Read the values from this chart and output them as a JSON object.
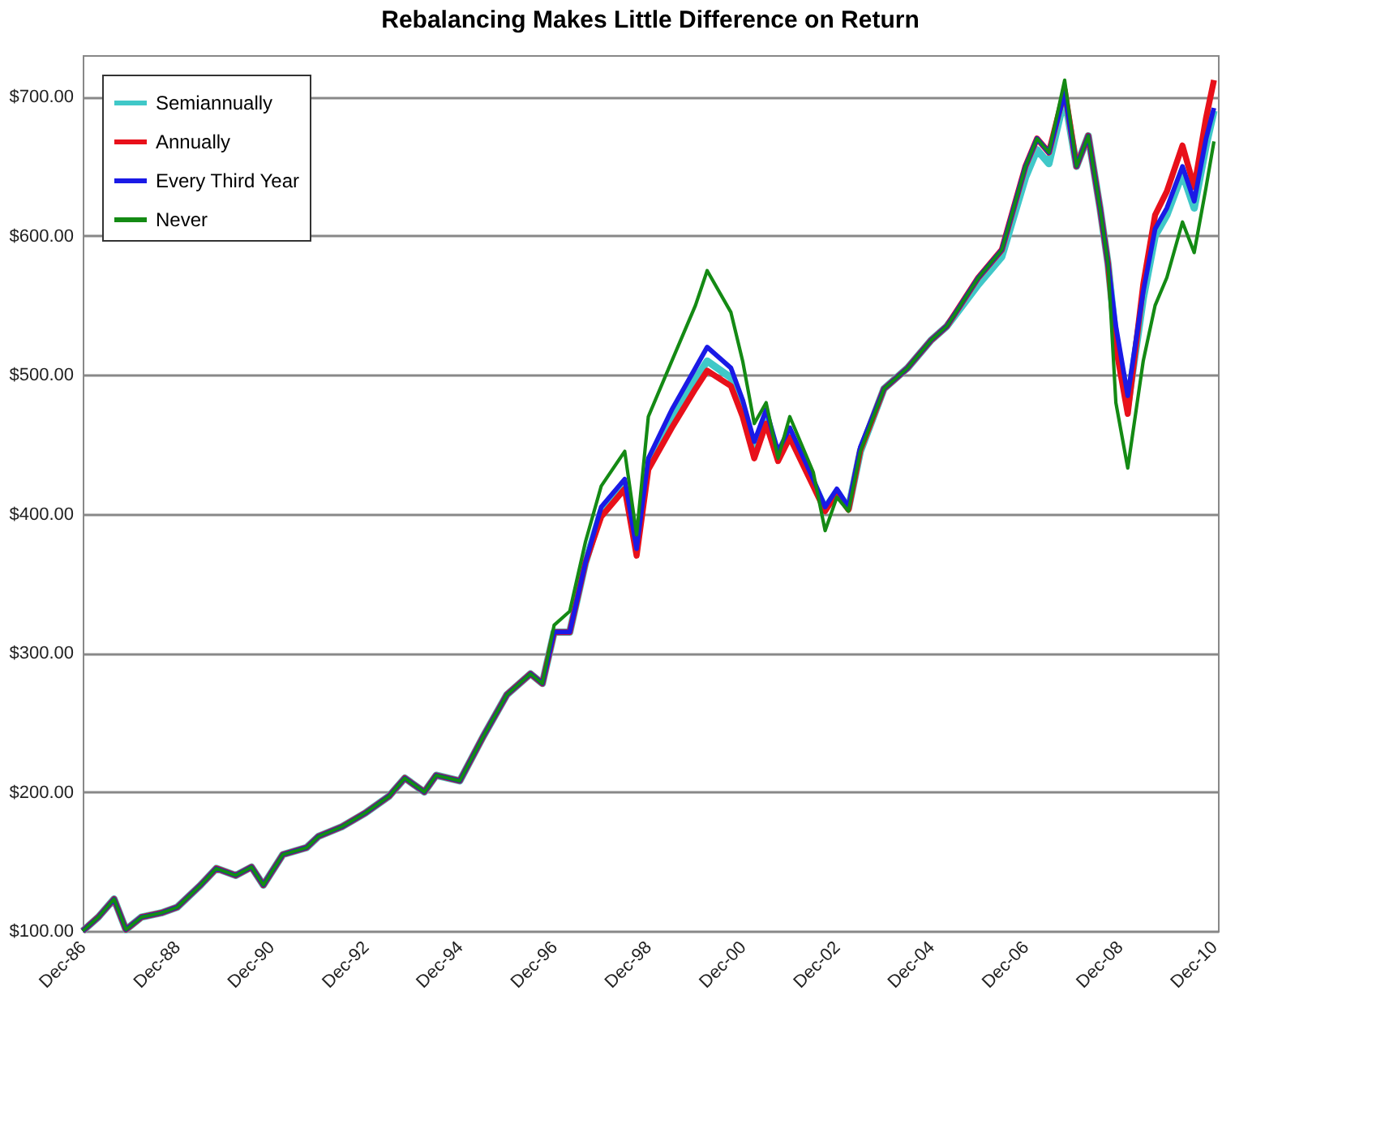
{
  "chart_data": {
    "type": "line",
    "title": "Rebalancing Makes Little Difference on Return",
    "x": [
      "1986-12",
      "1987-04",
      "1987-08",
      "1987-11",
      "1988-03",
      "1988-08",
      "1988-12",
      "1989-06",
      "1989-10",
      "1990-03",
      "1990-07",
      "1990-10",
      "1991-03",
      "1991-09",
      "1991-12",
      "1992-06",
      "1992-12",
      "1993-06",
      "1993-10",
      "1994-03",
      "1994-06",
      "1994-12",
      "1995-06",
      "1995-12",
      "1996-06",
      "1996-09",
      "1996-12",
      "1997-04",
      "1997-08",
      "1997-12",
      "1998-06",
      "1998-09",
      "1998-12",
      "1999-06",
      "1999-12",
      "2000-03",
      "2000-09",
      "2000-12",
      "2001-03",
      "2001-06",
      "2001-09",
      "2001-12",
      "2002-06",
      "2002-09",
      "2002-12",
      "2003-03",
      "2003-06",
      "2003-12",
      "2004-06",
      "2004-12",
      "2005-04",
      "2005-12",
      "2006-06",
      "2006-12",
      "2007-03",
      "2007-06",
      "2007-10",
      "2008-01",
      "2008-04",
      "2008-07",
      "2008-09",
      "2008-11",
      "2009-02",
      "2009-06",
      "2009-09",
      "2009-12",
      "2010-04",
      "2010-07",
      "2010-10",
      "2010-12"
    ],
    "series": [
      {
        "name": "Semiannually",
        "color": "#40c8c8",
        "values": [
          100,
          110,
          123,
          101,
          110,
          113,
          117,
          133,
          145,
          140,
          146,
          133,
          155,
          160,
          168,
          175,
          185,
          197,
          210,
          200,
          212,
          208,
          240,
          270,
          285,
          278,
          315,
          315,
          365,
          402,
          422,
          null,
          437,
          468,
          497,
          510,
          498,
          476,
          446,
          470,
          null,
          458,
          422,
          404,
          416,
          404,
          445,
          490,
          505,
          525,
          535,
          565,
          585,
          642,
          662,
          652,
          700,
          650,
          672,
          620,
          580,
          525,
          478,
          555,
          600,
          615,
          645,
          620,
          665,
          690
        ]
      },
      {
        "name": "Annually",
        "color": "#e8101a",
        "values": [
          100,
          110,
          123,
          101,
          110,
          113,
          117,
          133,
          145,
          140,
          146,
          133,
          155,
          160,
          168,
          175,
          185,
          197,
          210,
          200,
          212,
          208,
          240,
          270,
          285,
          278,
          315,
          315,
          365,
          398,
          418,
          370,
          432,
          462,
          490,
          503,
          492,
          470,
          440,
          465,
          438,
          455,
          420,
          402,
          415,
          403,
          446,
          490,
          505,
          525,
          535,
          570,
          590,
          650,
          670,
          660,
          705,
          650,
          672,
          620,
          580,
          520,
          472,
          565,
          615,
          632,
          665,
          635,
          685,
          712
        ]
      },
      {
        "name": "Every Third Year",
        "color": "#1a1ae6",
        "values": [
          100,
          110,
          123,
          101,
          110,
          113,
          117,
          133,
          145,
          140,
          146,
          133,
          155,
          160,
          168,
          175,
          185,
          197,
          210,
          200,
          212,
          208,
          240,
          270,
          285,
          278,
          315,
          315,
          365,
          405,
          425,
          375,
          440,
          475,
          505,
          520,
          505,
          482,
          452,
          475,
          445,
          462,
          425,
          405,
          418,
          405,
          448,
          490,
          505,
          525,
          535,
          570,
          590,
          650,
          670,
          660,
          703,
          650,
          672,
          620,
          580,
          535,
          485,
          560,
          605,
          620,
          650,
          625,
          670,
          692
        ]
      },
      {
        "name": "Never",
        "color": "#148a14",
        "values": [
          100,
          110,
          123,
          101,
          110,
          113,
          117,
          133,
          145,
          140,
          146,
          133,
          155,
          160,
          168,
          175,
          185,
          197,
          210,
          200,
          212,
          208,
          240,
          270,
          285,
          278,
          320,
          330,
          380,
          420,
          445,
          385,
          470,
          510,
          550,
          575,
          545,
          510,
          465,
          480,
          440,
          470,
          430,
          388,
          412,
          402,
          445,
          490,
          505,
          525,
          535,
          570,
          590,
          650,
          670,
          660,
          712,
          650,
          672,
          620,
          580,
          480,
          433,
          510,
          550,
          570,
          610,
          588,
          635,
          668
        ]
      }
    ],
    "xlim": [
      "1986-12",
      "2011-01"
    ],
    "xticks": [
      {
        "value": "1986-12",
        "label": "Dec-86"
      },
      {
        "value": "1988-12",
        "label": "Dec-88"
      },
      {
        "value": "1990-12",
        "label": "Dec-90"
      },
      {
        "value": "1992-12",
        "label": "Dec-92"
      },
      {
        "value": "1994-12",
        "label": "Dec-94"
      },
      {
        "value": "1996-12",
        "label": "Dec-96"
      },
      {
        "value": "1998-12",
        "label": "Dec-98"
      },
      {
        "value": "2000-12",
        "label": "Dec-00"
      },
      {
        "value": "2002-12",
        "label": "Dec-02"
      },
      {
        "value": "2004-12",
        "label": "Dec-04"
      },
      {
        "value": "2006-12",
        "label": "Dec-06"
      },
      {
        "value": "2008-12",
        "label": "Dec-08"
      },
      {
        "value": "2010-12",
        "label": "Dec-10"
      }
    ],
    "ylim": [
      100,
      730
    ],
    "yticks": [
      {
        "value": 100,
        "label": "$100.00"
      },
      {
        "value": 200,
        "label": "$200.00"
      },
      {
        "value": 300,
        "label": "$300.00"
      },
      {
        "value": 400,
        "label": "$400.00"
      },
      {
        "value": 500,
        "label": "$500.00"
      },
      {
        "value": 600,
        "label": "$600.00"
      },
      {
        "value": 700,
        "label": "$700.00"
      }
    ],
    "grid": "y",
    "legend": "top left",
    "marker": "none",
    "line_style": "solid"
  }
}
